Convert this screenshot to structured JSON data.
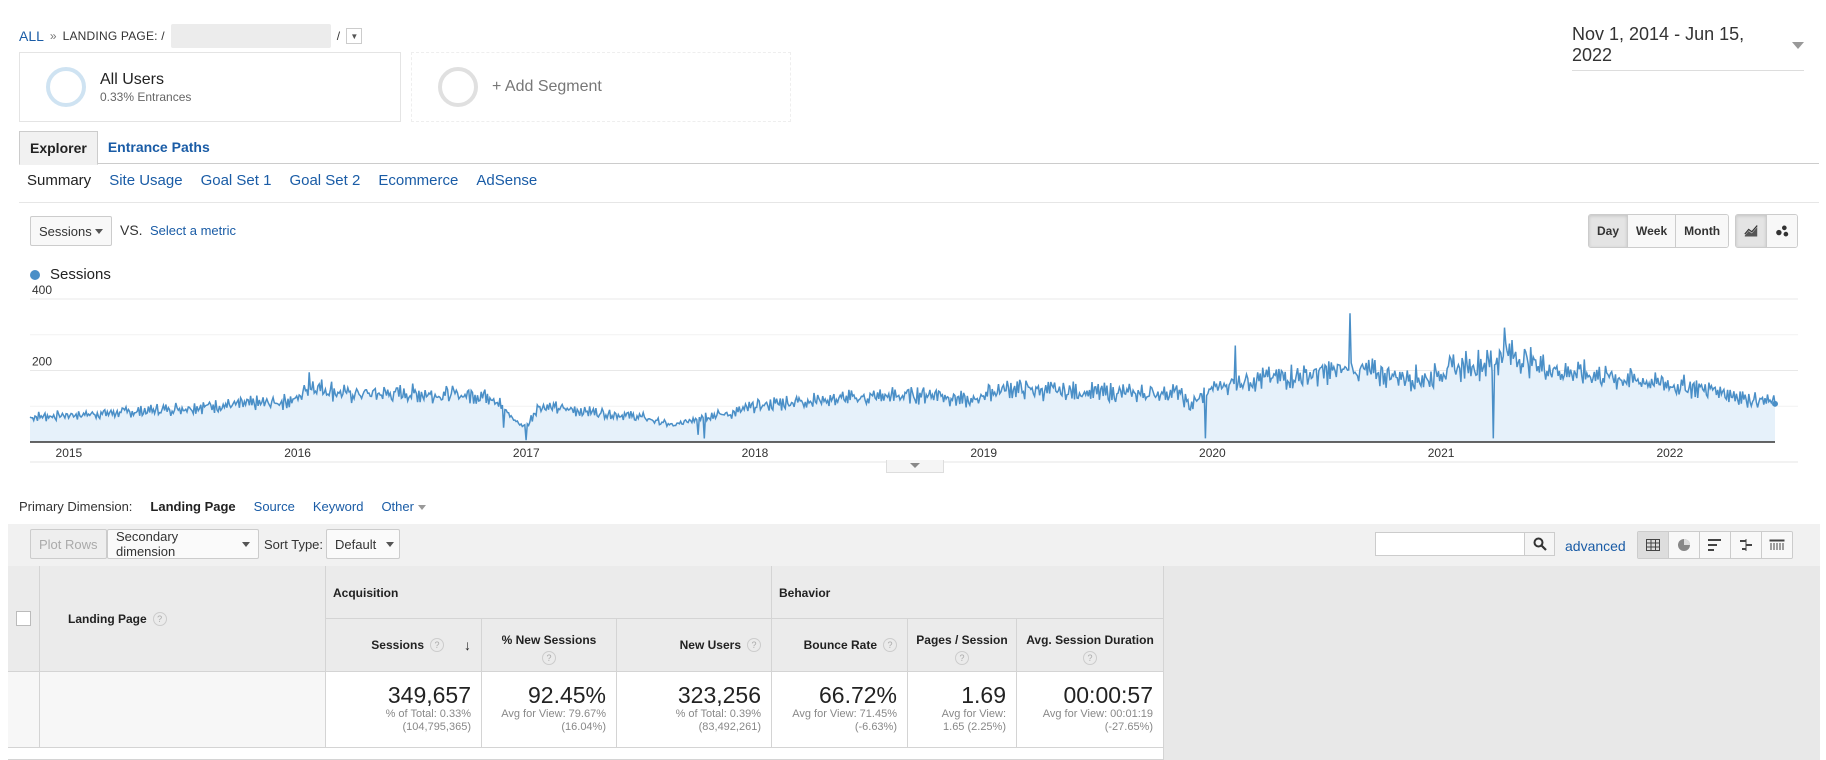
{
  "breadcrumb": {
    "all": "ALL",
    "sep": "»",
    "landing_label": "LANDING PAGE: /",
    "slash": "/"
  },
  "date_range": "Nov 1, 2014 - Jun 15, 2022",
  "segments": {
    "first": {
      "title": "All Users",
      "subtitle": "0.33% Entrances"
    },
    "add": "+ Add Segment"
  },
  "tabs": {
    "explorer": "Explorer",
    "entrance_paths": "Entrance Paths"
  },
  "subtabs": [
    "Summary",
    "Site Usage",
    "Goal Set 1",
    "Goal Set 2",
    "Ecommerce",
    "AdSense"
  ],
  "metric": {
    "selected": "Sessions",
    "vs": "VS.",
    "select_metric": "Select a metric"
  },
  "granularity": {
    "day": "Day",
    "week": "Week",
    "month": "Month"
  },
  "legend": {
    "series": "Sessions"
  },
  "chart_data": {
    "type": "area",
    "title": "",
    "series": [
      {
        "name": "Sessions",
        "color": "#4a8fc7"
      }
    ],
    "x_ticks": [
      "2015",
      "2016",
      "2017",
      "2018",
      "2019",
      "2020",
      "2021",
      "2022"
    ],
    "y_ticks": [
      "400",
      "200"
    ],
    "ylim": [
      0,
      400
    ],
    "xlim": [
      2014.83,
      2022.46
    ],
    "anchors": [
      [
        2014.83,
        70
      ],
      [
        2015.0,
        75
      ],
      [
        2015.3,
        85
      ],
      [
        2015.6,
        100
      ],
      [
        2015.9,
        110
      ],
      [
        2016.0,
        120
      ],
      [
        2016.05,
        160
      ],
      [
        2016.2,
        135
      ],
      [
        2016.5,
        135
      ],
      [
        2016.85,
        130
      ],
      [
        2016.95,
        60
      ],
      [
        2017.0,
        40
      ],
      [
        2017.05,
        100
      ],
      [
        2017.2,
        90
      ],
      [
        2017.5,
        70
      ],
      [
        2017.65,
        45
      ],
      [
        2017.75,
        70
      ],
      [
        2017.9,
        80
      ],
      [
        2018.0,
        100
      ],
      [
        2018.2,
        115
      ],
      [
        2018.5,
        125
      ],
      [
        2018.8,
        135
      ],
      [
        2018.95,
        110
      ],
      [
        2019.0,
        135
      ],
      [
        2019.1,
        150
      ],
      [
        2019.4,
        140
      ],
      [
        2019.7,
        135
      ],
      [
        2019.85,
        140
      ],
      [
        2019.9,
        100
      ],
      [
        2020.0,
        150
      ],
      [
        2020.15,
        175
      ],
      [
        2020.4,
        185
      ],
      [
        2020.6,
        205
      ],
      [
        2020.8,
        185
      ],
      [
        2020.95,
        175
      ],
      [
        2021.0,
        200
      ],
      [
        2021.2,
        220
      ],
      [
        2021.3,
        245
      ],
      [
        2021.5,
        200
      ],
      [
        2021.7,
        185
      ],
      [
        2022.0,
        160
      ],
      [
        2022.2,
        145
      ],
      [
        2022.35,
        120
      ],
      [
        2022.46,
        110
      ]
    ],
    "spikes": [
      [
        2016.05,
        195
      ],
      [
        2016.9,
        40
      ],
      [
        2017.0,
        5
      ],
      [
        2017.75,
        20
      ],
      [
        2017.78,
        10
      ],
      [
        2019.97,
        10
      ],
      [
        2020.1,
        270
      ],
      [
        2020.6,
        360
      ],
      [
        2021.23,
        10
      ],
      [
        2021.28,
        320
      ]
    ]
  },
  "dimension": {
    "label": "Primary Dimension:",
    "current": "Landing Page",
    "source": "Source",
    "keyword": "Keyword",
    "other": "Other"
  },
  "toolbar": {
    "plot_rows": "Plot Rows",
    "secondary": "Secondary dimension",
    "sort_type": "Sort Type:",
    "sort_value": "Default",
    "advanced": "advanced",
    "search_placeholder": ""
  },
  "table": {
    "dimension_header": "Landing Page",
    "groups": {
      "acquisition": "Acquisition",
      "behavior": "Behavior"
    },
    "columns": [
      {
        "label": "Sessions",
        "total": "349,657",
        "sub1": "% of Total: 0.33%",
        "sub2": "(104,795,365)"
      },
      {
        "label": "% New Sessions",
        "total": "92.45%",
        "sub1": "Avg for View: 79.67%",
        "sub2": "(16.04%)"
      },
      {
        "label": "New Users",
        "total": "323,256",
        "sub1": "% of Total: 0.39%",
        "sub2": "(83,492,261)"
      },
      {
        "label": "Bounce Rate",
        "total": "66.72%",
        "sub1": "Avg for View: 71.45%",
        "sub2": "(-6.63%)"
      },
      {
        "label": "Pages / Session",
        "total": "1.69",
        "sub1": "Avg for View:",
        "sub2": "1.65 (2.25%)"
      },
      {
        "label": "Avg. Session Duration",
        "total": "00:00:57",
        "sub1": "Avg for View: 00:01:19",
        "sub2": "(-27.65%)"
      }
    ]
  }
}
